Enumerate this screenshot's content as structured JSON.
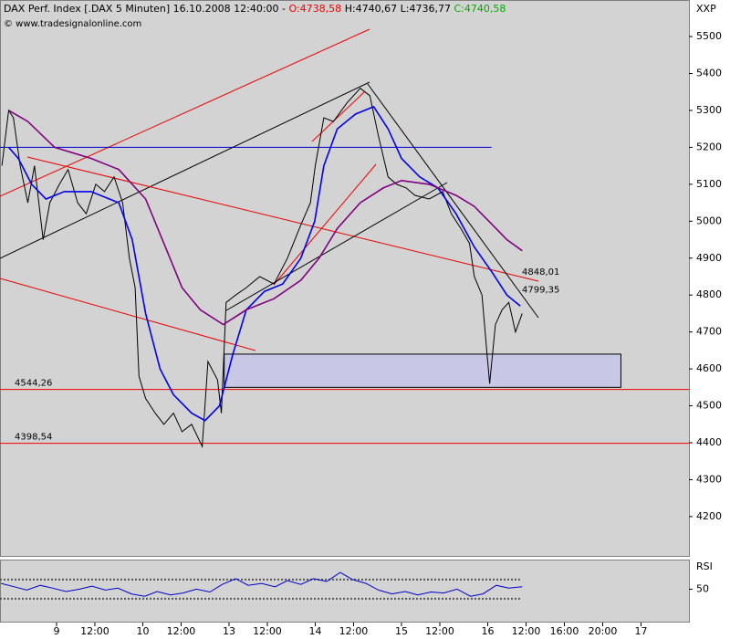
{
  "header": {
    "title": "DAX Perf. Index [.DAX  5 Minuten] 16.10.2008 12:40:00 -",
    "open": "O:4738,58",
    "high": "H:4740,67",
    "low": "L:4736,77",
    "close": "C:4740,58",
    "copyright": "© www.tradesignalonline.com",
    "currency": "XXP"
  },
  "chart_data": {
    "type": "line",
    "xlim": [
      -5.9,
      66
    ],
    "ylim": [
      4091,
      5599
    ],
    "xticks": [
      {
        "value": 0,
        "label": "9"
      },
      {
        "value": 4,
        "label": "12:00"
      },
      {
        "value": 9,
        "label": "10"
      },
      {
        "value": 13,
        "label": "12:00"
      },
      {
        "value": 18,
        "label": "13"
      },
      {
        "value": 22,
        "label": "12:00"
      },
      {
        "value": 27,
        "label": "14"
      },
      {
        "value": 31,
        "label": "12:00"
      },
      {
        "value": 36,
        "label": "15"
      },
      {
        "value": 40,
        "label": "12:00"
      },
      {
        "value": 45,
        "label": "16"
      },
      {
        "value": 49,
        "label": "12:00"
      },
      {
        "value": 53,
        "label": "16:00"
      },
      {
        "value": 57,
        "label": "20:00"
      },
      {
        "value": 61,
        "label": "17"
      }
    ],
    "yticks": [
      4200,
      4300,
      4400,
      4500,
      4600,
      4700,
      4800,
      4900,
      5000,
      5100,
      5200,
      5300,
      5400,
      5500
    ],
    "series": [
      {
        "color": "#000000",
        "x": [
          -5.7,
          -5.0,
          -4.5,
          -3.8,
          -3.0,
          -2.3,
          -1.4,
          -0.7,
          0.3,
          1.2,
          2.2,
          3.1,
          4.1,
          5.0,
          6.0,
          6.9,
          7.6,
          8.2,
          8.6,
          9.3,
          10.3,
          11.2,
          12.2,
          13.1,
          14.1,
          15.2,
          15.8,
          16.8,
          17.2,
          17.7,
          18.7,
          19.8,
          21.2,
          22.7,
          24.1,
          25.5,
          26.5,
          27.0,
          27.9,
          28.9,
          30.3,
          31.7,
          32.7,
          33.6,
          34.6,
          35.5,
          36.5,
          37.4,
          38.9,
          40.3,
          41.2,
          42.2,
          43.1,
          43.6,
          44.4,
          44.9,
          45.2,
          45.8,
          46.5,
          47.2,
          47.9,
          48.6
        ],
        "values": [
          5150,
          5300,
          5280,
          5150,
          5050,
          5150,
          4950,
          5050,
          5100,
          5140,
          5050,
          5020,
          5100,
          5080,
          5120,
          5050,
          4900,
          4820,
          4580,
          4520,
          4480,
          4450,
          4480,
          4430,
          4450,
          4390,
          4620,
          4570,
          4480,
          4780,
          4800,
          4820,
          4850,
          4830,
          4900,
          4990,
          5050,
          5150,
          5280,
          5270,
          5320,
          5360,
          5340,
          5230,
          5120,
          5100,
          5090,
          5070,
          5060,
          5080,
          5020,
          4980,
          4940,
          4850,
          4800,
          4650,
          4560,
          4720,
          4760,
          4780,
          4700,
          4750
        ]
      },
      {
        "color": "#0000ee",
        "x": [
          -5.0,
          -4.0,
          -2.6,
          -1.1,
          0.8,
          3.6,
          6.5,
          7.9,
          9.3,
          10.8,
          12.2,
          14.1,
          15.5,
          17.0,
          18.4,
          19.8,
          21.7,
          23.6,
          25.5,
          26.95,
          27.9,
          29.3,
          31.2,
          33.1,
          34.6,
          36.0,
          37.9,
          39.8,
          41.7,
          43.6,
          45.5,
          47.0,
          48.4
        ],
        "values": [
          5200,
          5170,
          5100,
          5060,
          5080,
          5080,
          5050,
          4950,
          4750,
          4600,
          4530,
          4480,
          4460,
          4500,
          4640,
          4760,
          4810,
          4830,
          4900,
          5000,
          5150,
          5250,
          5290,
          5310,
          5250,
          5170,
          5120,
          5090,
          5020,
          4930,
          4860,
          4800,
          4770
        ]
      },
      {
        "color": "#800080",
        "x": [
          -5.0,
          -3.0,
          -0.2,
          3.6,
          6.5,
          9.3,
          11.2,
          13.1,
          15.0,
          17.4,
          19.8,
          22.7,
          25.5,
          27.4,
          29.3,
          31.7,
          34.1,
          36.0,
          38.9,
          41.7,
          43.6,
          45.5,
          47.0,
          48.6
        ],
        "values": [
          5300,
          5270,
          5200,
          5170,
          5140,
          5060,
          4940,
          4820,
          4760,
          4720,
          4760,
          4790,
          4840,
          4900,
          4980,
          5050,
          5090,
          5110,
          5100,
          5070,
          5040,
          4990,
          4950,
          4920
        ]
      }
    ],
    "levels": [
      {
        "value": 4544.26,
        "label": "4544,26",
        "color": "#ee0000"
      },
      {
        "value": 4398.54,
        "label": "4398,54",
        "color": "#ee0000"
      }
    ],
    "hline": {
      "value": 5200,
      "x": [
        -5.9,
        45.4
      ],
      "color": "#0000cc"
    },
    "zone": {
      "x": [
        17.5,
        58.9
      ],
      "y": [
        4550,
        4640
      ],
      "color": "#c8c8e6"
    },
    "price_labels": [
      {
        "value": 4848.01,
        "label": "4848,01",
        "color": "#cc0000"
      },
      {
        "value": 4799.35,
        "label": "4799,35",
        "color": "#000000"
      }
    ],
    "rsi": {
      "label": "RSI",
      "ylim": [
        -20,
        110
      ],
      "yticks": [
        50
      ],
      "levels": [
        70,
        30
      ],
      "color": "#0000cc",
      "x": [
        -5.8,
        -4.4,
        -3.1,
        -1.7,
        -0.4,
        1.0,
        2.4,
        3.7,
        5.1,
        6.4,
        7.8,
        9.2,
        10.5,
        11.9,
        13.2,
        14.6,
        16.0,
        17.3,
        18.7,
        20.0,
        21.4,
        22.8,
        24.1,
        25.5,
        26.8,
        28.2,
        29.6,
        30.9,
        32.3,
        33.6,
        35.0,
        36.4,
        37.7,
        39.1,
        40.4,
        41.8,
        43.2,
        44.5,
        45.9,
        47.2,
        48.6
      ],
      "values": [
        62,
        55,
        48,
        58,
        52,
        45,
        50,
        56,
        48,
        52,
        40,
        35,
        45,
        38,
        42,
        50,
        44,
        60,
        72,
        58,
        62,
        55,
        68,
        60,
        72,
        66,
        85,
        70,
        62,
        48,
        40,
        45,
        38,
        44,
        42,
        50,
        35,
        40,
        58,
        52,
        55
      ]
    }
  }
}
